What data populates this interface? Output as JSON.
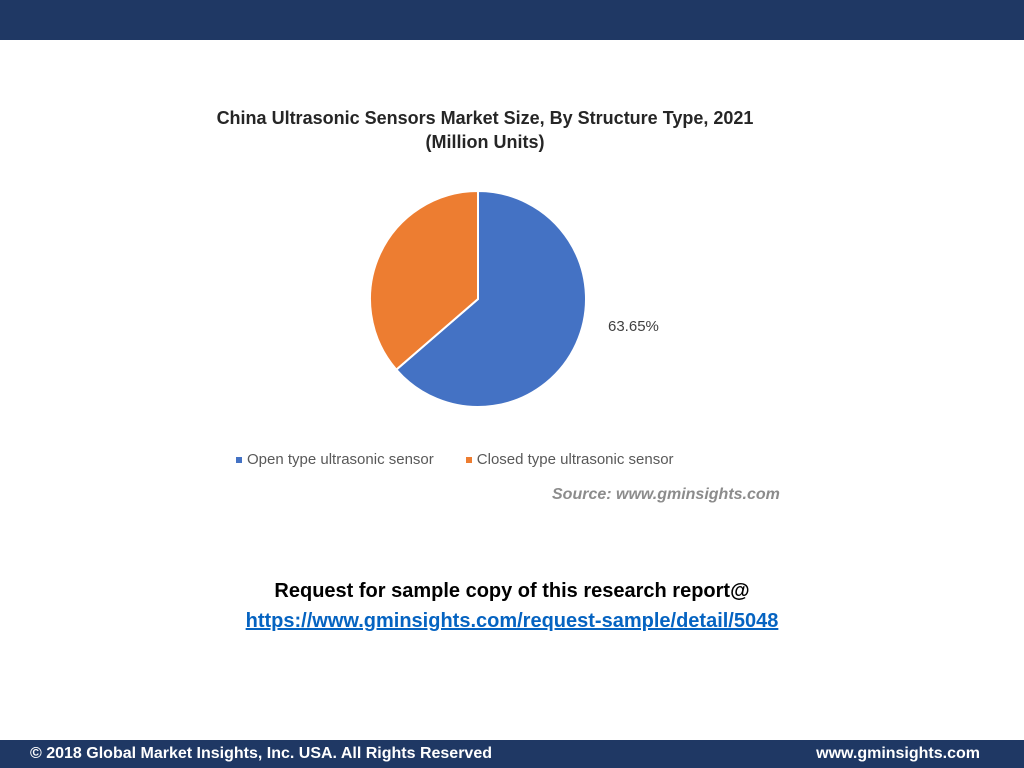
{
  "chart_data": {
    "type": "pie",
    "title": "China Ultrasonic Sensors Market Size, By Structure Type, 2021 (Million Units)",
    "categories": [
      "Open type ultrasonic sensor",
      "Closed type ultrasonic sensor"
    ],
    "values": [
      63.65,
      36.35
    ],
    "data_labels": [
      "63.65%"
    ],
    "colors": [
      "#4472c4",
      "#ed7d31"
    ],
    "legend_placement": "bottom",
    "source": "Source: www.gminsights.com"
  },
  "request": {
    "text": "Request for sample copy of this research report@",
    "link": "https://www.gminsights.com/request-sample/detail/5048"
  },
  "footer": {
    "copyright": "© 2018 Global Market Insights, Inc. USA. All Rights Reserved",
    "website": "www.gminsights.com"
  },
  "colors": {
    "bar": "#1f3864",
    "link": "#0563c1"
  }
}
